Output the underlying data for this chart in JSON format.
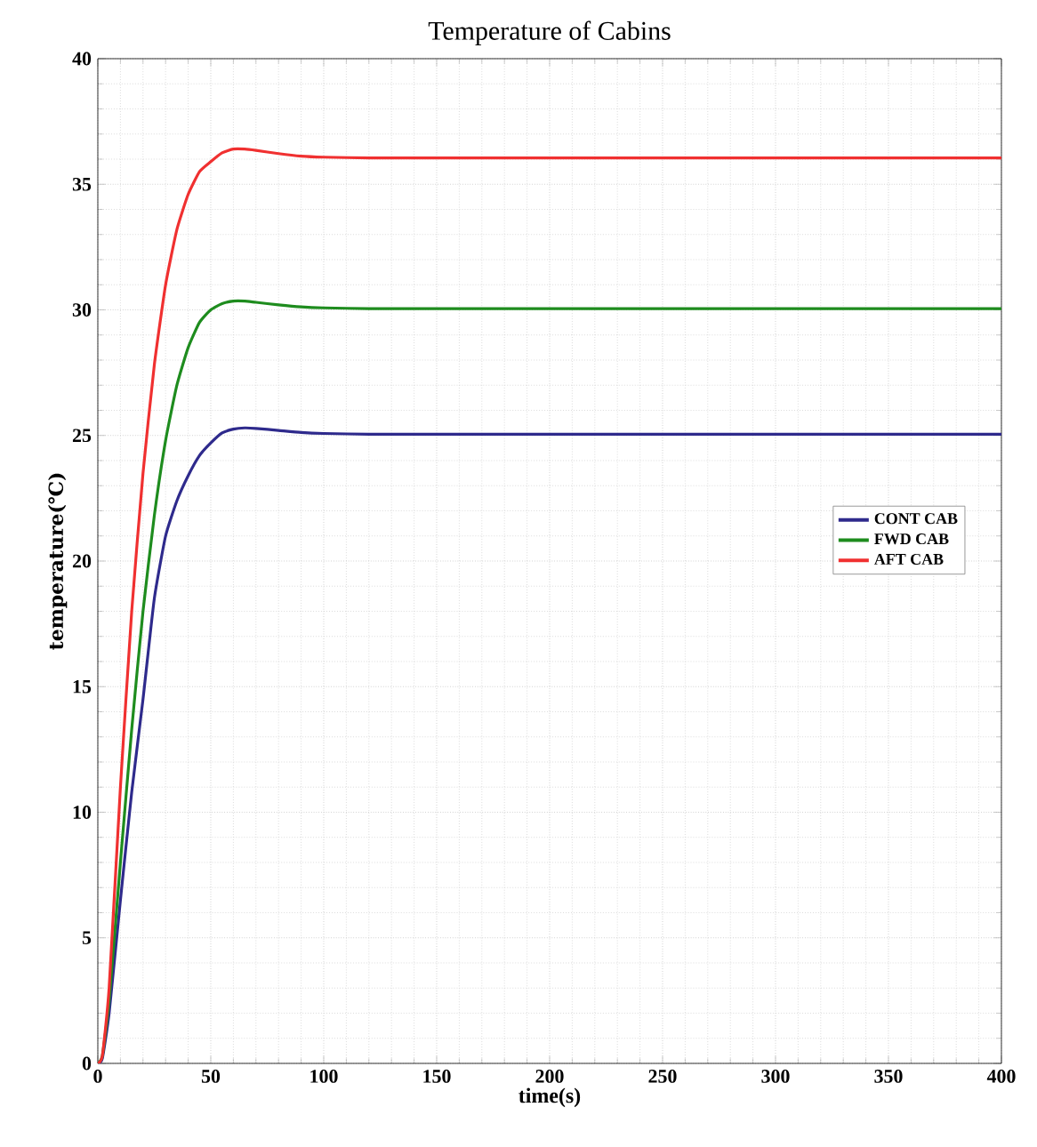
{
  "chart_data": {
    "type": "line",
    "title": "Temperature of Cabins",
    "xlabel": "time(s)",
    "ylabel": "temperature(℃)",
    "x": [
      0,
      2,
      5,
      10,
      15,
      20,
      25,
      30,
      35,
      40,
      45,
      50,
      55,
      60,
      65,
      70,
      80,
      90,
      100,
      120,
      150,
      200,
      300,
      400
    ],
    "series": [
      {
        "name": "CONT CAB",
        "color": "#2e2a8c",
        "values": [
          0,
          0.2,
          2,
          6.5,
          10.8,
          14.5,
          18.5,
          21,
          22.4,
          23.4,
          24.2,
          24.7,
          25.1,
          25.25,
          25.3,
          25.28,
          25.2,
          25.12,
          25.08,
          25.05,
          25.05,
          25.05,
          25.05,
          25.05
        ]
      },
      {
        "name": "FWD CAB",
        "color": "#1e8c1e",
        "values": [
          0,
          0.3,
          2.5,
          8,
          13.3,
          18,
          21.8,
          24.8,
          27,
          28.5,
          29.5,
          30,
          30.25,
          30.35,
          30.35,
          30.3,
          30.2,
          30.12,
          30.08,
          30.05,
          30.05,
          30.05,
          30.05,
          30.05
        ]
      },
      {
        "name": "AFT CAB",
        "color": "#f03030",
        "values": [
          0,
          0.3,
          3,
          11,
          18,
          23.5,
          27.8,
          31,
          33.2,
          34.6,
          35.5,
          35.9,
          36.25,
          36.4,
          36.4,
          36.35,
          36.22,
          36.12,
          36.08,
          36.05,
          36.05,
          36.05,
          36.05,
          36.05
        ]
      }
    ],
    "xlim": [
      0,
      400
    ],
    "ylim": [
      0,
      40
    ],
    "xticks": [
      0,
      50,
      100,
      150,
      200,
      250,
      300,
      350,
      400
    ],
    "yticks": [
      0,
      5,
      10,
      15,
      20,
      25,
      30,
      35,
      40
    ],
    "grid": true,
    "legend": "right",
    "line_style": "solid",
    "marker": "none"
  }
}
